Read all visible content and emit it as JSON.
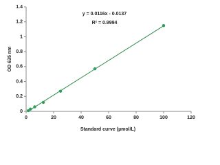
{
  "chart_data": {
    "type": "scatter",
    "x_label": "Standard curve (µmol/L)",
    "y_label": "OD 635 nm",
    "series": [
      {
        "color": "#2e9e5b",
        "x": [
          1.5625,
          3.125,
          6.25,
          12.5,
          25,
          50,
          100
        ],
        "values": [
          0.01,
          0.03,
          0.06,
          0.12,
          0.27,
          0.57,
          1.15
        ]
      }
    ],
    "trendline": {
      "equation": "y = 0.0116x - 0.0137",
      "r2": "R² = 0.9994",
      "slope": 0.0116,
      "intercept": -0.0137,
      "color": "#2e8b4a"
    },
    "xlim": [
      0,
      120
    ],
    "xticks": [
      0,
      20,
      40,
      60,
      80,
      100,
      120
    ],
    "ylim": [
      0,
      1.4
    ],
    "yticks": [
      0,
      0.2,
      0.4,
      0.6,
      0.8,
      1,
      1.2,
      1.4
    ],
    "grid": false
  }
}
